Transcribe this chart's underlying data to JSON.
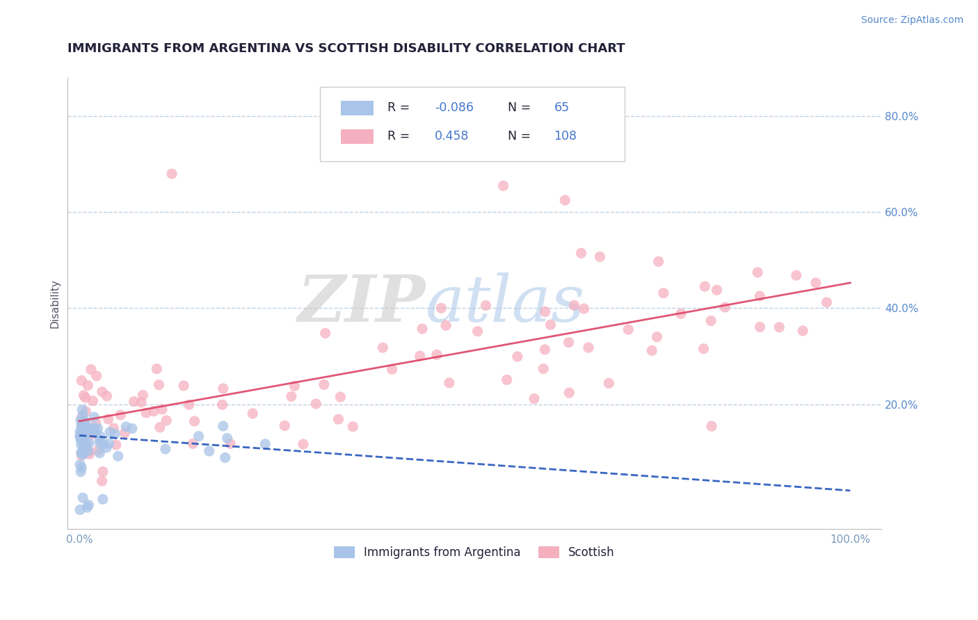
{
  "title": "IMMIGRANTS FROM ARGENTINA VS SCOTTISH DISABILITY CORRELATION CHART",
  "source": "Source: ZipAtlas.com",
  "ylabel": "Disability",
  "legend_R1": "-0.086",
  "legend_N1": "65",
  "legend_R2": "0.458",
  "legend_N2": "108",
  "blue_color": "#a8c4e8",
  "pink_color": "#f5b0c0",
  "blue_line_color": "#2255bb",
  "pink_line_color": "#dd4466",
  "background_color": "#ffffff",
  "grid_color": "#c0d0e0",
  "watermark_zip": "ZIP",
  "watermark_atlas": "atlas",
  "title_color": "#22223a",
  "source_color": "#5588cc",
  "tick_color": "#7799bb",
  "label_color": "#555566"
}
